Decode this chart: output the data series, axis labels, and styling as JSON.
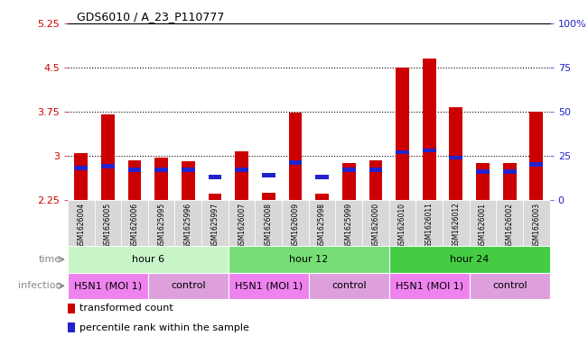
{
  "title": "GDS6010 / A_23_P110777",
  "samples": [
    "GSM1626004",
    "GSM1626005",
    "GSM1626006",
    "GSM1625995",
    "GSM1625996",
    "GSM1625997",
    "GSM1626007",
    "GSM1626008",
    "GSM1626009",
    "GSM1625998",
    "GSM1625999",
    "GSM1626000",
    "GSM1626010",
    "GSM1626011",
    "GSM1626012",
    "GSM1626001",
    "GSM1626002",
    "GSM1626003"
  ],
  "red_values": [
    3.05,
    3.7,
    2.93,
    2.97,
    2.9,
    2.35,
    3.08,
    2.37,
    3.73,
    2.35,
    2.87,
    2.92,
    4.5,
    4.65,
    3.82,
    2.87,
    2.88,
    3.75
  ],
  "blue_values": [
    18,
    19,
    17,
    17,
    17,
    13,
    17,
    14,
    21,
    13,
    17,
    17,
    27,
    28,
    24,
    16,
    16,
    20
  ],
  "ymin": 2.25,
  "ymax": 5.25,
  "yticks": [
    2.25,
    3.0,
    3.75,
    4.5,
    5.25
  ],
  "ytick_labels": [
    "2.25",
    "3",
    "3.75",
    "4.5",
    "5.25"
  ],
  "right_yticks": [
    0,
    25,
    50,
    75,
    100
  ],
  "right_ytick_labels": [
    "0",
    "25",
    "50",
    "75",
    "100%"
  ],
  "dotted_lines": [
    3.0,
    3.75,
    4.5
  ],
  "time_groups": [
    {
      "label": "hour 6",
      "start": 0,
      "end": 6,
      "color": "#c8f5c8"
    },
    {
      "label": "hour 12",
      "start": 6,
      "end": 12,
      "color": "#77dd77"
    },
    {
      "label": "hour 24",
      "start": 12,
      "end": 18,
      "color": "#44cc44"
    }
  ],
  "infection_groups": [
    {
      "label": "H5N1 (MOI 1)",
      "start": 0,
      "end": 3,
      "color": "#ee82ee"
    },
    {
      "label": "control",
      "start": 3,
      "end": 6,
      "color": "#dda0dd"
    },
    {
      "label": "H5N1 (MOI 1)",
      "start": 6,
      "end": 9,
      "color": "#ee82ee"
    },
    {
      "label": "control",
      "start": 9,
      "end": 12,
      "color": "#dda0dd"
    },
    {
      "label": "H5N1 (MOI 1)",
      "start": 12,
      "end": 15,
      "color": "#ee82ee"
    },
    {
      "label": "control",
      "start": 15,
      "end": 18,
      "color": "#dda0dd"
    }
  ],
  "bar_width": 0.5,
  "bar_color": "#cc0000",
  "blue_bar_color": "#2222cc",
  "background_color": "#ffffff",
  "axis_color_left": "#cc0000",
  "axis_color_right": "#2222cc",
  "sample_box_color": "#d8d8d8",
  "legend_items": [
    {
      "label": "transformed count",
      "color": "#cc0000"
    },
    {
      "label": "percentile rank within the sample",
      "color": "#2222cc"
    }
  ]
}
